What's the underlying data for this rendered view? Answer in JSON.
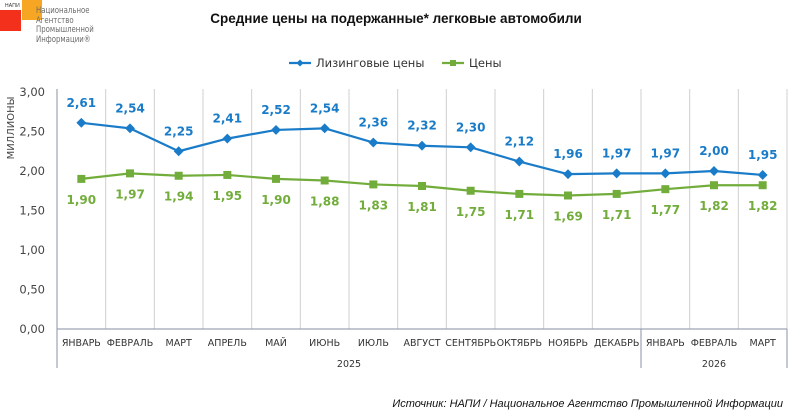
{
  "logo": {
    "abbr": "НАПИ",
    "lines": [
      "Национальное",
      "Агентство",
      "Промышленной",
      "Информации®"
    ],
    "colors": {
      "red": "#f2301b",
      "orange": "#f6a623"
    }
  },
  "source": "Источник: НАПИ / Национальное Агентство Промышленной Информации",
  "chart_data": {
    "type": "line",
    "title": "Средние цены на подержанные* легковые автомобили",
    "ylabel": "МИЛЛИОНЫ",
    "xlabel": "",
    "ylim": [
      0,
      3
    ],
    "yticks": [
      "0,00",
      "0,50",
      "1,00",
      "1,50",
      "2,00",
      "2,50",
      "3,00"
    ],
    "ytick_values": [
      0,
      0.5,
      1,
      1.5,
      2,
      2.5,
      3
    ],
    "grid": "vertical-category-separators",
    "legend_position": "top-center",
    "categories": [
      "ЯНВАРЬ",
      "ФЕВРАЛЬ",
      "МАРТ",
      "АПРЕЛЬ",
      "МАЙ",
      "ИЮНЬ",
      "ИЮЛЬ",
      "АВГУСТ",
      "СЕНТЯБРЬ",
      "ОКТЯБРЬ",
      "НОЯБРЬ",
      "ДЕКАБРЬ",
      "ЯНВАРЬ",
      "ФЕВРАЛЬ",
      "МАРТ"
    ],
    "groups": [
      {
        "label": "2025",
        "start": 0,
        "count": 12
      },
      {
        "label": "2026",
        "start": 12,
        "count": 3
      }
    ],
    "series": [
      {
        "name": "Лизинговые цены",
        "color": "#1a7cc8",
        "marker": "diamond",
        "labels_position": "above",
        "values": [
          2.61,
          2.54,
          2.25,
          2.41,
          2.52,
          2.54,
          2.36,
          2.32,
          2.3,
          2.12,
          1.96,
          1.97,
          1.97,
          2.0,
          1.95
        ],
        "labels": [
          "2,61",
          "2,54",
          "2,25",
          "2,41",
          "2,52",
          "2,54",
          "2,36",
          "2,32",
          "2,30",
          "2,12",
          "1,96",
          "1,97",
          "1,97",
          "2,00",
          "1,95"
        ]
      },
      {
        "name": "Цены",
        "color": "#72ad3c",
        "marker": "square",
        "labels_position": "below",
        "values": [
          1.9,
          1.97,
          1.94,
          1.95,
          1.9,
          1.88,
          1.83,
          1.81,
          1.75,
          1.71,
          1.69,
          1.71,
          1.77,
          1.82,
          1.82
        ],
        "labels": [
          "1,90",
          "1,97",
          "1,94",
          "1,95",
          "1,90",
          "1,88",
          "1,83",
          "1,81",
          "1,75",
          "1,71",
          "1,69",
          "1,71",
          "1,77",
          "1,82",
          "1,82"
        ]
      }
    ]
  }
}
